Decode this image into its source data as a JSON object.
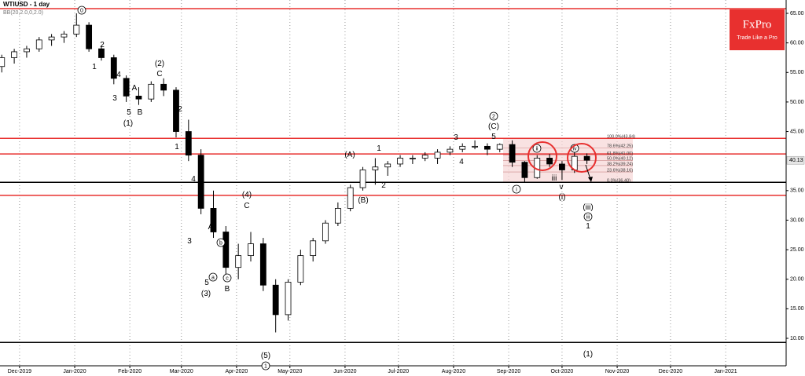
{
  "chart_data": {
    "type": "candlestick",
    "title": "WTIUSD - 1 day",
    "indicator": "BB(20,2.0,0,2.0)",
    "logo": {
      "brand": "FxPro",
      "tagline": "Trade Like a Pro"
    },
    "xlim": [
      -11,
      431
    ],
    "xticks": [
      {
        "value": 0,
        "label": "Dec-2019"
      },
      {
        "value": 31,
        "label": "Jan-2020"
      },
      {
        "value": 62,
        "label": "Feb-2020"
      },
      {
        "value": 91,
        "label": "Mar-2020"
      },
      {
        "value": 122,
        "label": "Apr-2020"
      },
      {
        "value": 152,
        "label": "May-2020"
      },
      {
        "value": 183,
        "label": "Jun-2020"
      },
      {
        "value": 213,
        "label": "Jul-2020"
      },
      {
        "value": 244,
        "label": "Aug-2020"
      },
      {
        "value": 275,
        "label": "Sep-2020"
      },
      {
        "value": 305,
        "label": "Oct-2020"
      },
      {
        "value": 336,
        "label": "Nov-2020"
      },
      {
        "value": 366,
        "label": "Dec-2020"
      },
      {
        "value": 397,
        "label": "Jan-2021"
      }
    ],
    "ylim": [
      5.35,
      67.26
    ],
    "yticks": [
      {
        "value": 10,
        "label": "10.00"
      },
      {
        "value": 15,
        "label": "15.00"
      },
      {
        "value": 20,
        "label": "20.00"
      },
      {
        "value": 25,
        "label": "25.00"
      },
      {
        "value": 30,
        "label": "30.00"
      },
      {
        "value": 35,
        "label": "35.00"
      },
      {
        "value": 45,
        "label": "45.00"
      },
      {
        "value": 50,
        "label": "50.00"
      },
      {
        "value": 55,
        "label": "55.00"
      },
      {
        "value": 60,
        "label": "60.00"
      },
      {
        "value": 65,
        "label": "65.00"
      }
    ],
    "up_color": "#ffffff",
    "down_color": "#000000",
    "candles": {
      "x": [
        -10,
        -3,
        4,
        11,
        18,
        25,
        32,
        39,
        46,
        53,
        60,
        67,
        74,
        81,
        88,
        95,
        102,
        109,
        116,
        123,
        130,
        137,
        144,
        151,
        158,
        165,
        172,
        179,
        186,
        193,
        200,
        207,
        214,
        221,
        228,
        235,
        242,
        249,
        256,
        263,
        270,
        277,
        284,
        291,
        298,
        305,
        312,
        319
      ],
      "open": [
        56,
        57.5,
        58.5,
        59,
        60.5,
        61,
        61.5,
        63,
        59,
        57.5,
        54,
        51,
        50.5,
        53,
        52,
        45,
        41,
        32,
        28,
        22,
        24,
        26,
        19,
        14,
        19.5,
        24,
        26.5,
        29.5,
        32,
        35.5,
        38.5,
        39,
        39.5,
        40.5,
        40.5,
        40.5,
        41.5,
        42,
        42.5,
        42.5,
        42,
        42.8,
        39.8,
        37.2,
        40.5,
        39.5,
        38.5,
        40.8
      ],
      "high": [
        58,
        59,
        59.5,
        61,
        61.5,
        62,
        65,
        63.5,
        59.5,
        58,
        54.5,
        52.5,
        53.5,
        54,
        52.5,
        47,
        42,
        35,
        29,
        26,
        28,
        27,
        20,
        20,
        25,
        27,
        30,
        33,
        36,
        39,
        40.5,
        40,
        41,
        41,
        41.5,
        42,
        42.5,
        43,
        43.5,
        43,
        43,
        43.5,
        40,
        41,
        41.2,
        40,
        41.5,
        41.3
      ],
      "low": [
        55,
        56.5,
        57.5,
        58.5,
        59.5,
        60,
        61,
        58.5,
        57,
        53,
        50,
        49.5,
        50,
        51,
        44,
        40,
        31,
        27,
        20,
        20,
        23,
        18,
        11,
        13,
        19,
        23,
        26,
        29,
        31.5,
        35,
        36,
        37.5,
        39,
        39.5,
        40,
        39.5,
        41,
        41.5,
        42,
        41,
        41.5,
        39,
        36.5,
        37,
        39,
        36.8,
        38,
        39.5
      ],
      "close": [
        57.5,
        58.5,
        59,
        60.5,
        61,
        61.5,
        63,
        59,
        57.5,
        54,
        51,
        50.5,
        53,
        52,
        45,
        41,
        32,
        28,
        22,
        24,
        26,
        19,
        14,
        19.5,
        24,
        26.5,
        29.5,
        32,
        35.5,
        38.5,
        39,
        39.5,
        40.5,
        40.5,
        41,
        41.5,
        42,
        42.5,
        42.5,
        42,
        42.8,
        39.8,
        37.2,
        40.5,
        39.5,
        38.5,
        40.8,
        40.13
      ]
    },
    "levels": [
      {
        "value": 65.8,
        "color": "#e8302f"
      },
      {
        "value": 43.84,
        "color": "#e8302f"
      },
      {
        "value": 41.2,
        "color": "#e8302f"
      },
      {
        "value": 36.4,
        "color": "#000000"
      },
      {
        "value": 34.2,
        "color": "#e8302f"
      },
      {
        "value": 9.3,
        "color": "#000000"
      }
    ],
    "fib_color": "#f6d5d5",
    "fib_levels": [
      {
        "value": 43.84,
        "label": "100.0%(43.84)"
      },
      {
        "value": 42.25,
        "label": "78.6%(42.25)"
      },
      {
        "value": 41.0,
        "label": "61.8%(41.00)"
      },
      {
        "value": 40.12,
        "label": "50.0%(40.12)"
      },
      {
        "value": 39.24,
        "label": "38.2%(39.24)"
      },
      {
        "value": 38.16,
        "label": "23.6%(38.16)"
      },
      {
        "value": 36.4,
        "label": "0.0%(36.40)"
      }
    ],
    "annotations": [
      {
        "text": "0",
        "circled": true
      },
      {
        "text": "2"
      },
      {
        "text": "1"
      },
      {
        "text": "4"
      },
      {
        "text": "3"
      },
      {
        "text": "5"
      },
      {
        "text": "(1)"
      },
      {
        "text": "A"
      },
      {
        "text": "B"
      },
      {
        "text": "(2)"
      },
      {
        "text": "C"
      },
      {
        "text": "2"
      },
      {
        "text": "1"
      },
      {
        "text": "4"
      },
      {
        "text": "3"
      },
      {
        "text": "A"
      },
      {
        "text": "b",
        "circled": true
      },
      {
        "text": "5"
      },
      {
        "text": "a",
        "circled": true
      },
      {
        "text": "c",
        "circled": true
      },
      {
        "text": "(3)"
      },
      {
        "text": "B"
      },
      {
        "text": "(4)"
      },
      {
        "text": "C"
      },
      {
        "text": "(5)"
      },
      {
        "text": "1",
        "circled": true
      },
      {
        "text": "(A)"
      },
      {
        "text": "1"
      },
      {
        "text": "2"
      },
      {
        "text": "(B)"
      },
      {
        "text": "3"
      },
      {
        "text": "4"
      },
      {
        "text": "2",
        "circled": true
      },
      {
        "text": "(C)"
      },
      {
        "text": "5"
      },
      {
        "text": "i",
        "circled": true
      },
      {
        "text": "ii",
        "circled": true
      },
      {
        "text": "iii"
      },
      {
        "text": "iv",
        "circled": true
      },
      {
        "text": "v"
      },
      {
        "text": "(i)"
      },
      {
        "text": "(iii)"
      },
      {
        "text": "iii",
        "circled": true
      },
      {
        "text": "1"
      },
      {
        "text": "(1)"
      }
    ]
  }
}
